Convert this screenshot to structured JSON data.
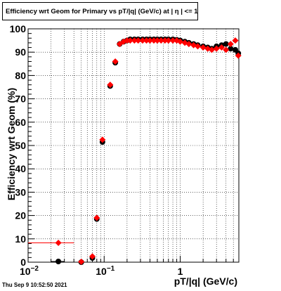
{
  "chart_data": {
    "type": "scatter",
    "title": "Efficiency wrt Geom for Primary vs pT/|q| (GeV/c) at |  η | <= 1.0",
    "xlabel": "pT/|q| (GeV/c)",
    "ylabel": "Efficiency wrt Geom (%)",
    "xscale": "log",
    "xlim": [
      0.01,
      5.9
    ],
    "ylim": [
      0,
      100
    ],
    "grid": true,
    "x_tick_labels": [
      {
        "value": 0.01,
        "base": "10",
        "exp": "−2"
      },
      {
        "value": 0.1,
        "base": "10",
        "exp": "−1"
      },
      {
        "value": 1,
        "base": "1",
        "exp": ""
      }
    ],
    "y_tick_labels": [
      "0",
      "10",
      "20",
      "30",
      "40",
      "50",
      "60",
      "70",
      "80",
      "90",
      "100"
    ],
    "series": [
      {
        "color": "#000000",
        "marker": "circle",
        "points": [
          {
            "x": 0.025,
            "y": 0.3,
            "xerr": 0.005
          },
          {
            "x": 0.05,
            "y": 0,
            "xerr": 0.003
          },
          {
            "x": 0.07,
            "y": 1.8,
            "xerr": 0.003
          },
          {
            "x": 0.08,
            "y": 18.5,
            "xerr": 0.004
          },
          {
            "x": 0.095,
            "y": 51.5,
            "xerr": 0.005
          },
          {
            "x": 0.12,
            "y": 75.5,
            "xerr": 0.004
          },
          {
            "x": 0.14,
            "y": 85.5,
            "xerr": 0.004
          },
          {
            "x": 0.16,
            "y": 93.5
          },
          {
            "x": 0.18,
            "y": 94.5
          },
          {
            "x": 0.2,
            "y": 95
          },
          {
            "x": 0.22,
            "y": 95.5
          },
          {
            "x": 0.25,
            "y": 95.5
          },
          {
            "x": 0.28,
            "y": 95.5
          },
          {
            "x": 0.32,
            "y": 95.5
          },
          {
            "x": 0.36,
            "y": 95.5
          },
          {
            "x": 0.4,
            "y": 95.5
          },
          {
            "x": 0.45,
            "y": 95.5
          },
          {
            "x": 0.5,
            "y": 95.5
          },
          {
            "x": 0.56,
            "y": 95.5
          },
          {
            "x": 0.63,
            "y": 95.5
          },
          {
            "x": 0.7,
            "y": 95.5
          },
          {
            "x": 0.8,
            "y": 95.5
          },
          {
            "x": 0.9,
            "y": 95.3
          },
          {
            "x": 1.0,
            "y": 95
          },
          {
            "x": 1.15,
            "y": 94.5
          },
          {
            "x": 1.3,
            "y": 94
          },
          {
            "x": 1.5,
            "y": 93.5
          },
          {
            "x": 1.7,
            "y": 93
          },
          {
            "x": 2.0,
            "y": 92.5
          },
          {
            "x": 2.3,
            "y": 92
          },
          {
            "x": 2.6,
            "y": 91.5
          },
          {
            "x": 3.0,
            "y": 92.5
          },
          {
            "x": 3.5,
            "y": 93
          },
          {
            "x": 4.0,
            "y": 93.5
          },
          {
            "x": 4.6,
            "y": 91.5
          },
          {
            "x": 5.3,
            "y": 91
          },
          {
            "x": 5.8,
            "y": 89.5
          }
        ]
      },
      {
        "color": "#ff0000",
        "marker": "diamond",
        "points": [
          {
            "x": 0.025,
            "y": 8.3,
            "xerr": 0.015
          },
          {
            "x": 0.05,
            "y": 0.2,
            "xerr": 0.003
          },
          {
            "x": 0.07,
            "y": 2.5,
            "xerr": 0.003
          },
          {
            "x": 0.08,
            "y": 19,
            "xerr": 0.004
          },
          {
            "x": 0.095,
            "y": 52.5,
            "xerr": 0.005
          },
          {
            "x": 0.12,
            "y": 76,
            "xerr": 0.004
          },
          {
            "x": 0.14,
            "y": 86,
            "xerr": 0.004
          },
          {
            "x": 0.16,
            "y": 93.5
          },
          {
            "x": 0.18,
            "y": 94.5
          },
          {
            "x": 0.2,
            "y": 95
          },
          {
            "x": 0.22,
            "y": 95
          },
          {
            "x": 0.25,
            "y": 95
          },
          {
            "x": 0.28,
            "y": 95
          },
          {
            "x": 0.32,
            "y": 95
          },
          {
            "x": 0.36,
            "y": 95
          },
          {
            "x": 0.4,
            "y": 95
          },
          {
            "x": 0.45,
            "y": 95
          },
          {
            "x": 0.5,
            "y": 95
          },
          {
            "x": 0.56,
            "y": 95
          },
          {
            "x": 0.63,
            "y": 95
          },
          {
            "x": 0.7,
            "y": 95
          },
          {
            "x": 0.8,
            "y": 95
          },
          {
            "x": 0.9,
            "y": 95
          },
          {
            "x": 1.0,
            "y": 94.5
          },
          {
            "x": 1.15,
            "y": 94
          },
          {
            "x": 1.3,
            "y": 93.5
          },
          {
            "x": 1.5,
            "y": 93
          },
          {
            "x": 1.7,
            "y": 92.5
          },
          {
            "x": 2.0,
            "y": 92
          },
          {
            "x": 2.3,
            "y": 91.5
          },
          {
            "x": 2.6,
            "y": 91
          },
          {
            "x": 3.0,
            "y": 91.5
          },
          {
            "x": 3.5,
            "y": 92
          },
          {
            "x": 4.0,
            "y": 91
          },
          {
            "x": 4.6,
            "y": 93.5
          },
          {
            "x": 5.3,
            "y": 95
          },
          {
            "x": 5.8,
            "y": 88.5
          }
        ]
      }
    ]
  },
  "timestamp": "Thu Sep  9 10:52:50 2021"
}
